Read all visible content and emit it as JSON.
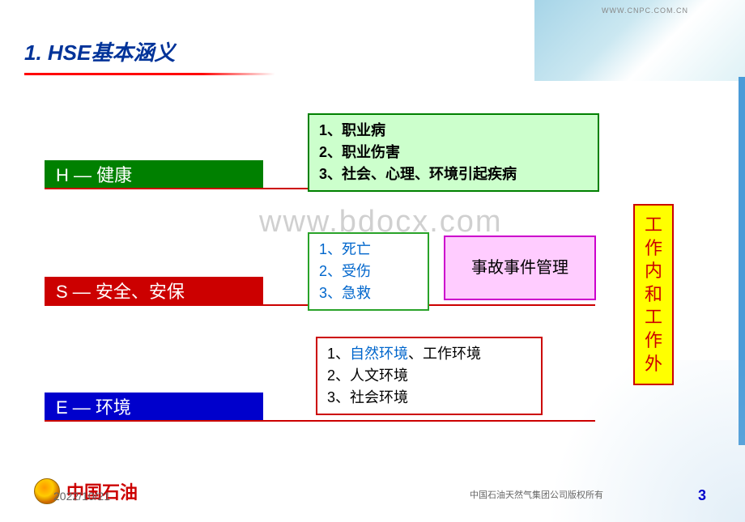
{
  "header": {
    "url": "WWW.CNPC.COM.CN",
    "title": "1. HSE基本涵义"
  },
  "categories": {
    "h": {
      "label": "H — 健康",
      "bg_color": "#008000"
    },
    "s": {
      "label": "S — 安全、安保",
      "bg_color": "#cc0000"
    },
    "e": {
      "label": "E — 环境",
      "bg_color": "#0000cc"
    }
  },
  "boxes": {
    "h_items": {
      "line1": "1、职业病",
      "line2": "2、职业伤害",
      "line3": "3、社会、心理、环境引起疾病",
      "border": "#008000",
      "bg": "#ccffcc"
    },
    "s_items": {
      "line1": "1、死亡",
      "line2": "2、受伤",
      "line3": "3、急救",
      "border": "#29a329",
      "bg": "#ffffff",
      "text_color": "#0066cc"
    },
    "s_mgmt": {
      "text": "事故事件管理",
      "border": "#cc00cc",
      "bg": "#ffccff"
    },
    "e_items": {
      "line1_prefix": "1、",
      "line1_blue": "自然环境",
      "line1_suffix": "、工作环境",
      "line2": "2、人文环境",
      "line3": "3、社会环境",
      "border": "#cc0000",
      "bg": "#ffffff"
    },
    "vertical": {
      "chars": [
        "工",
        "作",
        "内",
        "和",
        "工",
        "作",
        "外"
      ],
      "border": "#cc0000",
      "bg": "#ffff00",
      "text_color": "#cc0000"
    }
  },
  "watermark": "www.bdocx.com",
  "footer": {
    "logo_text": "中国石油",
    "date": "2022/10/21",
    "copyright": "中国石油天然气集团公司版权所有",
    "page": "3"
  },
  "colors": {
    "title_color": "#003399",
    "underline_color": "#cc0000",
    "side_bar": "#4a9bd8"
  }
}
